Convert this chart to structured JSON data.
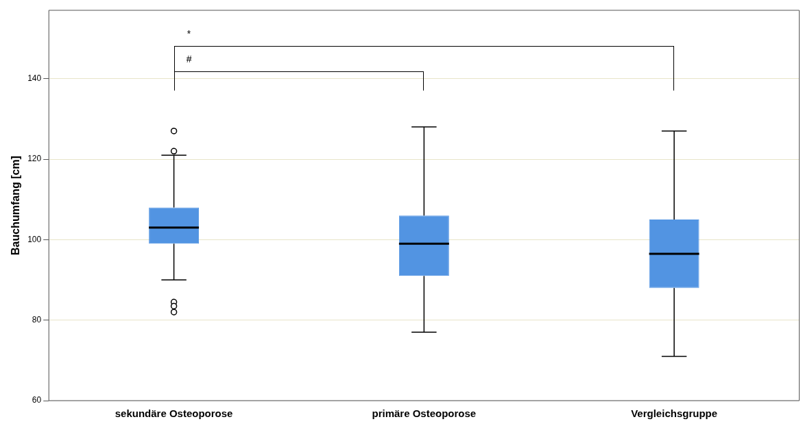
{
  "chart_data": {
    "type": "box",
    "ylabel": "Bauchumfang [cm]",
    "categories": [
      "sekundäre Osteoporose",
      "primäre Osteoporose",
      "Vergleichsgruppe"
    ],
    "series": [
      {
        "color": "#5294e2",
        "boxes": [
          {
            "low": 90,
            "q1": 99,
            "median": 103,
            "q3": 108,
            "high": 121,
            "outliers": [
              127,
              122,
              84.5,
              83.5,
              82
            ]
          },
          {
            "low": 77,
            "q1": 91,
            "median": 99,
            "q3": 106,
            "high": 128
          },
          {
            "low": 71,
            "q1": 88,
            "median": 96.5,
            "q3": 105,
            "high": 127
          }
        ]
      }
    ],
    "ylim": [
      60,
      157
    ],
    "yticks": [
      60,
      80,
      100,
      120,
      140
    ],
    "grid": "y",
    "legend": false,
    "annotations": [
      "*",
      "#"
    ]
  }
}
